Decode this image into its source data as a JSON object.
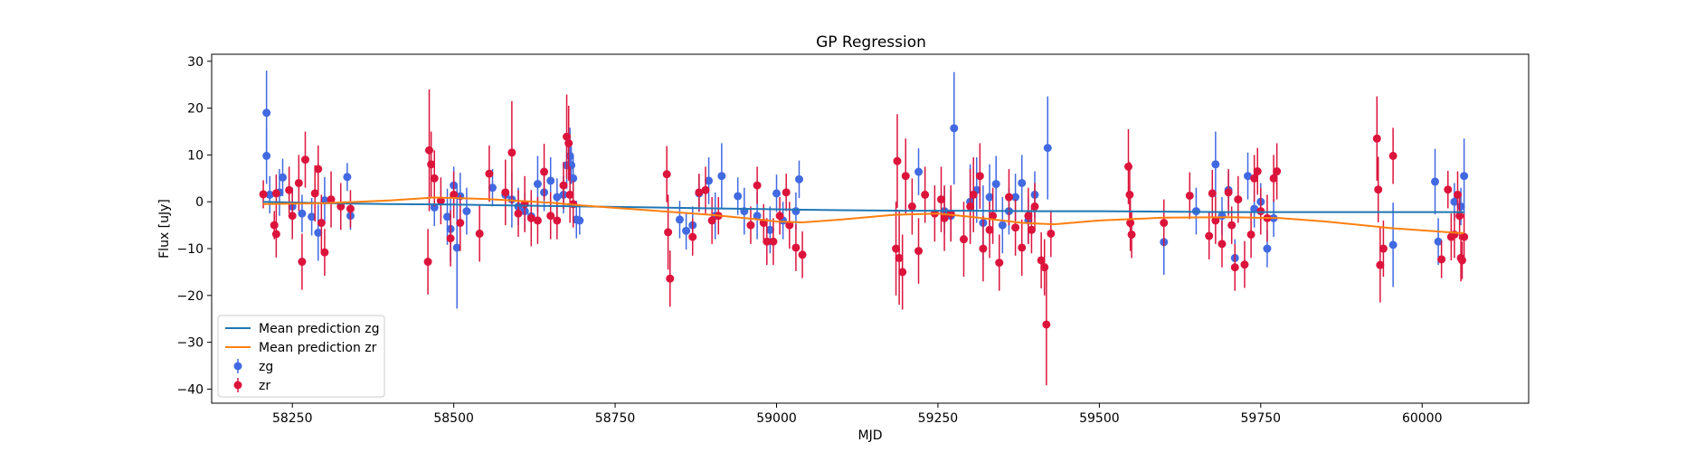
{
  "chart_data": {
    "type": "scatter",
    "title": "GP Regression",
    "xlabel": "MJD",
    "ylabel": "Flux [uJy]",
    "xlim": [
      58125,
      60165
    ],
    "ylim": [
      -43,
      31.5
    ],
    "xticks": [
      58250,
      58500,
      58750,
      59000,
      59250,
      59500,
      59750,
      60000
    ],
    "yticks": [
      30,
      20,
      10,
      0,
      -10,
      -20,
      -30,
      -40
    ],
    "legend_position": "lower-left",
    "grid": false,
    "lines": [
      {
        "name": "Mean prediction zg",
        "color": "#1f77b4",
        "x": [
          58205,
          58300,
          58400,
          58500,
          58600,
          58700,
          58800,
          58900,
          59000,
          59040,
          59100,
          59200,
          59300,
          59400,
          59500,
          59600,
          59700,
          59800,
          59900,
          60000,
          60065
        ],
        "y": [
          0.0,
          -0.3,
          -0.5,
          -0.6,
          -0.8,
          -1.0,
          -1.2,
          -1.4,
          -1.6,
          -1.7,
          -1.8,
          -1.9,
          -1.9,
          -2.0,
          -2.0,
          -2.1,
          -2.2,
          -2.2,
          -2.2,
          -2.2,
          -2.2
        ]
      },
      {
        "name": "Mean prediction zr",
        "color": "#ff7f0e",
        "x": [
          58205,
          58300,
          58400,
          58470,
          58550,
          58650,
          58700,
          58800,
          58900,
          58960,
          59000,
          59040,
          59100,
          59180,
          59250,
          59300,
          59380,
          59430,
          59500,
          59600,
          59700,
          59780,
          59850,
          59950,
          60050,
          60065
        ],
        "y": [
          -0.5,
          -0.3,
          0.3,
          0.9,
          0.6,
          -0.2,
          -0.8,
          -1.8,
          -2.8,
          -3.6,
          -4.2,
          -4.4,
          -3.8,
          -2.8,
          -2.5,
          -3.2,
          -4.5,
          -4.8,
          -4.0,
          -3.4,
          -3.3,
          -3.5,
          -4.2,
          -5.6,
          -6.6,
          -6.7
        ]
      }
    ],
    "series": [
      {
        "name": "zg",
        "color": "#4169e1",
        "points": [
          [
            58210,
            19.0,
            9.0
          ],
          [
            58210,
            9.8,
            6.0
          ],
          [
            58215,
            1.5,
            4.0
          ],
          [
            58230,
            2.0,
            5.0
          ],
          [
            58235,
            5.2,
            4.0
          ],
          [
            58250,
            -1.0,
            4.0
          ],
          [
            58265,
            -2.5,
            4.0
          ],
          [
            58280,
            -3.2,
            4.0
          ],
          [
            58290,
            -6.6,
            6.0
          ],
          [
            58300,
            0.3,
            5.0
          ],
          [
            58335,
            5.3,
            3.0
          ],
          [
            58340,
            -3.0,
            3.0
          ],
          [
            58470,
            -1.2,
            4.0
          ],
          [
            58490,
            -3.2,
            6.0
          ],
          [
            58495,
            -5.8,
            7.0
          ],
          [
            58500,
            3.5,
            4.0
          ],
          [
            58505,
            -9.8,
            13.0
          ],
          [
            58510,
            1.2,
            5.0
          ],
          [
            58520,
            -2.0,
            5.0
          ],
          [
            58560,
            3.0,
            4.0
          ],
          [
            58580,
            1.5,
            5.0
          ],
          [
            58590,
            0.5,
            6.0
          ],
          [
            58600,
            -1.0,
            4.0
          ],
          [
            58610,
            -2.0,
            4.0
          ],
          [
            58620,
            -3.1,
            4.0
          ],
          [
            58630,
            3.8,
            6.0
          ],
          [
            58640,
            2.0,
            4.0
          ],
          [
            58650,
            4.5,
            5.0
          ],
          [
            58660,
            1.0,
            4.0
          ],
          [
            58670,
            1.5,
            4.0
          ],
          [
            58675,
            7.8,
            5.0
          ],
          [
            58680,
            9.8,
            6.0
          ],
          [
            58682,
            7.8,
            4.0
          ],
          [
            58685,
            5.0,
            5.0
          ],
          [
            58690,
            -3.8,
            4.0
          ],
          [
            58695,
            -4.0,
            3.0
          ],
          [
            58850,
            -3.8,
            4.0
          ],
          [
            58860,
            -6.2,
            4.0
          ],
          [
            58870,
            -5.0,
            4.0
          ],
          [
            58880,
            1.8,
            4.0
          ],
          [
            58895,
            4.5,
            5.0
          ],
          [
            58905,
            -3.0,
            5.0
          ],
          [
            58915,
            5.5,
            7.0
          ],
          [
            58940,
            1.2,
            4.0
          ],
          [
            58950,
            -2.0,
            5.0
          ],
          [
            58970,
            -3.0,
            5.0
          ],
          [
            58990,
            -6.0,
            5.0
          ],
          [
            59000,
            1.8,
            4.0
          ],
          [
            59010,
            -4.0,
            4.0
          ],
          [
            59030,
            -2.0,
            4.0
          ],
          [
            59035,
            4.8,
            4.0
          ],
          [
            59220,
            6.4,
            5.0
          ],
          [
            59260,
            -2.0,
            5.0
          ],
          [
            59270,
            -3.0,
            5.0
          ],
          [
            59275,
            15.7,
            12.0
          ],
          [
            59300,
            0.0,
            8.0
          ],
          [
            59310,
            2.5,
            7.0
          ],
          [
            59320,
            -4.5,
            8.0
          ],
          [
            59330,
            1.0,
            7.0
          ],
          [
            59340,
            3.8,
            6.0
          ],
          [
            59350,
            -5.0,
            6.0
          ],
          [
            59360,
            -2.0,
            5.0
          ],
          [
            59370,
            1.0,
            5.0
          ],
          [
            59380,
            4.0,
            6.0
          ],
          [
            59390,
            -4.0,
            5.0
          ],
          [
            59400,
            1.5,
            5.0
          ],
          [
            59420,
            11.5,
            11.0
          ],
          [
            59600,
            -8.6,
            7.0
          ],
          [
            59650,
            -2.0,
            5.0
          ],
          [
            59680,
            8.0,
            7.0
          ],
          [
            59690,
            -3.0,
            4.0
          ],
          [
            59700,
            2.5,
            4.0
          ],
          [
            59710,
            -12.0,
            4.0
          ],
          [
            59730,
            5.5,
            5.0
          ],
          [
            59740,
            -1.5,
            4.0
          ],
          [
            59750,
            0.0,
            4.0
          ],
          [
            59760,
            -10.0,
            4.0
          ],
          [
            59770,
            -3.5,
            4.0
          ],
          [
            60020,
            4.3,
            7.0
          ],
          [
            60025,
            -8.5,
            5.0
          ],
          [
            60050,
            0.0,
            4.0
          ],
          [
            60060,
            -1.0,
            4.0
          ],
          [
            60065,
            5.5,
            8.0
          ],
          [
            59955,
            -9.2,
            9.0
          ]
        ]
      },
      {
        "name": "zr",
        "color": "#dc143c",
        "points": [
          [
            58205,
            1.6,
            3.0
          ],
          [
            58225,
            1.8,
            4.0
          ],
          [
            58222,
            -5.0,
            3.0
          ],
          [
            58225,
            -6.9,
            5.0
          ],
          [
            58245,
            2.5,
            5.0
          ],
          [
            58250,
            -3.0,
            5.0
          ],
          [
            58260,
            4.0,
            6.0
          ],
          [
            58265,
            -12.8,
            6.0
          ],
          [
            58270,
            9.0,
            6.0
          ],
          [
            58285,
            1.8,
            6.0
          ],
          [
            58290,
            7.0,
            5.0
          ],
          [
            58295,
            -4.5,
            6.0
          ],
          [
            58300,
            -10.8,
            5.0
          ],
          [
            58310,
            0.5,
            6.0
          ],
          [
            58325,
            -1.0,
            5.0
          ],
          [
            58340,
            -1.5,
            4.0
          ],
          [
            58460,
            -12.8,
            7.0
          ],
          [
            58462,
            11.0,
            13.0
          ],
          [
            58465,
            8.0,
            7.0
          ],
          [
            58470,
            5.0,
            6.0
          ],
          [
            58480,
            0.2,
            5.0
          ],
          [
            58495,
            -7.8,
            6.0
          ],
          [
            58500,
            1.5,
            5.0
          ],
          [
            58510,
            -4.5,
            6.0
          ],
          [
            58540,
            -6.8,
            6.0
          ],
          [
            58555,
            6.0,
            6.0
          ],
          [
            58580,
            2.0,
            7.0
          ],
          [
            58590,
            10.5,
            11.0
          ],
          [
            58600,
            -2.5,
            5.0
          ],
          [
            58610,
            -0.5,
            6.0
          ],
          [
            58620,
            -3.5,
            6.0
          ],
          [
            58630,
            -4.0,
            5.0
          ],
          [
            58640,
            6.4,
            6.0
          ],
          [
            58650,
            -3.0,
            5.0
          ],
          [
            58660,
            -4.0,
            4.0
          ],
          [
            58670,
            3.5,
            5.0
          ],
          [
            58675,
            13.9,
            9.0
          ],
          [
            58678,
            12.5,
            8.0
          ],
          [
            58680,
            1.5,
            6.0
          ],
          [
            58685,
            -0.5,
            5.0
          ],
          [
            58830,
            5.9,
            6.0
          ],
          [
            58832,
            -6.5,
            8.0
          ],
          [
            58835,
            -16.4,
            6.0
          ],
          [
            58870,
            -7.5,
            4.0
          ],
          [
            58880,
            2.0,
            4.0
          ],
          [
            58890,
            2.5,
            5.0
          ],
          [
            58900,
            -4.0,
            5.0
          ],
          [
            58910,
            -3.0,
            4.0
          ],
          [
            58960,
            -5.0,
            4.0
          ],
          [
            58970,
            3.5,
            4.0
          ],
          [
            58980,
            -4.5,
            4.0
          ],
          [
            58985,
            -8.5,
            5.0
          ],
          [
            58995,
            -8.5,
            5.0
          ],
          [
            59005,
            -3.0,
            4.0
          ],
          [
            59015,
            2.0,
            4.0
          ],
          [
            59020,
            -5.0,
            5.0
          ],
          [
            59030,
            -9.8,
            5.0
          ],
          [
            59040,
            -11.3,
            5.0
          ],
          [
            59185,
            -10.0,
            10.0
          ],
          [
            59187,
            8.7,
            10.0
          ],
          [
            59190,
            -12.0,
            10.0
          ],
          [
            59195,
            -15.0,
            8.0
          ],
          [
            59200,
            5.5,
            8.0
          ],
          [
            59210,
            -1.0,
            6.0
          ],
          [
            59220,
            -10.5,
            7.0
          ],
          [
            59230,
            1.5,
            6.0
          ],
          [
            59245,
            -2.5,
            6.0
          ],
          [
            59255,
            0.5,
            7.0
          ],
          [
            59260,
            -3.5,
            7.0
          ],
          [
            59270,
            -2.5,
            6.0
          ],
          [
            59290,
            -8.0,
            8.0
          ],
          [
            59300,
            -1.0,
            8.0
          ],
          [
            59305,
            1.5,
            8.0
          ],
          [
            59315,
            5.5,
            7.0
          ],
          [
            59320,
            -10.0,
            7.0
          ],
          [
            59330,
            -6.0,
            6.0
          ],
          [
            59335,
            -3.0,
            6.0
          ],
          [
            59345,
            -13.0,
            6.0
          ],
          [
            59360,
            1.0,
            6.0
          ],
          [
            59370,
            -5.5,
            6.0
          ],
          [
            59380,
            -9.8,
            6.0
          ],
          [
            59390,
            -3.0,
            6.0
          ],
          [
            59395,
            -6.0,
            5.0
          ],
          [
            59400,
            -1.0,
            5.0
          ],
          [
            59410,
            -12.5,
            6.0
          ],
          [
            59415,
            -14.0,
            6.0
          ],
          [
            59418,
            -26.2,
            13.0
          ],
          [
            59425,
            -6.8,
            5.0
          ],
          [
            59545,
            7.5,
            8.0
          ],
          [
            59547,
            1.5,
            7.0
          ],
          [
            59548,
            -4.5,
            6.0
          ],
          [
            59550,
            -7.0,
            5.0
          ],
          [
            59600,
            -4.5,
            5.0
          ],
          [
            59640,
            1.3,
            5.0
          ],
          [
            59670,
            -7.3,
            5.0
          ],
          [
            59675,
            1.8,
            5.0
          ],
          [
            59680,
            -4.0,
            5.0
          ],
          [
            59690,
            -9.0,
            5.0
          ],
          [
            59700,
            2.0,
            5.0
          ],
          [
            59705,
            -5.0,
            4.0
          ],
          [
            59710,
            -14.0,
            5.0
          ],
          [
            59715,
            0.5,
            5.0
          ],
          [
            59725,
            -13.4,
            5.0
          ],
          [
            59735,
            -7.0,
            5.0
          ],
          [
            59740,
            5.0,
            5.0
          ],
          [
            59745,
            6.5,
            5.0
          ],
          [
            59750,
            -2.0,
            5.0
          ],
          [
            59760,
            -3.5,
            5.0
          ],
          [
            59770,
            5.0,
            5.0
          ],
          [
            59775,
            6.5,
            6.0
          ],
          [
            59930,
            13.5,
            9.0
          ],
          [
            59932,
            2.6,
            7.0
          ],
          [
            59935,
            -13.5,
            8.0
          ],
          [
            59940,
            -10.0,
            6.0
          ],
          [
            59955,
            9.8,
            6.0
          ],
          [
            60030,
            -12.3,
            4.0
          ],
          [
            60040,
            2.6,
            4.0
          ],
          [
            60045,
            -7.5,
            5.0
          ],
          [
            60050,
            -7.0,
            5.0
          ],
          [
            60055,
            1.5,
            5.0
          ],
          [
            60058,
            -3.0,
            5.0
          ],
          [
            60060,
            -12.0,
            5.0
          ],
          [
            60062,
            -12.5,
            4.0
          ],
          [
            60065,
            -7.5,
            5.0
          ]
        ]
      }
    ]
  }
}
